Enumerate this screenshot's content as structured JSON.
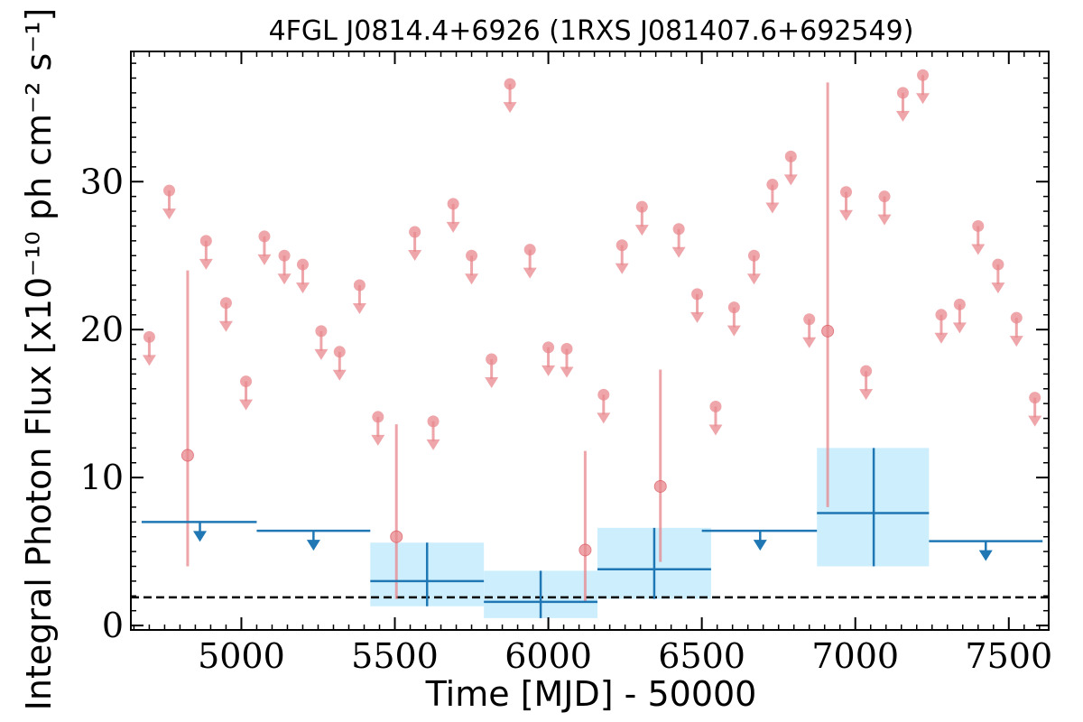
{
  "chart_data": {
    "type": "scatter",
    "title": "4FGL J0814.4+6926 (1RXS J081407.6+692549)",
    "xlabel": "Time [MJD] - 50000",
    "ylabel": "Integral Photon Flux [x10⁻¹⁰ ph cm⁻² s⁻¹]",
    "xlim": [
      4640,
      7630
    ],
    "ylim": [
      -0.3,
      38.8
    ],
    "xticks": [
      5000,
      5500,
      6000,
      6500,
      7000,
      7500
    ],
    "xtick_labels": [
      "5000",
      "5500",
      "6000",
      "6500",
      "7000",
      "7500"
    ],
    "yticks": [
      0,
      10,
      20,
      30
    ],
    "ytick_labels": [
      "0",
      "10",
      "20",
      "30"
    ],
    "grid": false,
    "legend": null,
    "colors": {
      "short_bins": "#e8888d",
      "long_bins": "#1f77b4",
      "long_bins_band": "#cdeefd",
      "reference_line": "#000000"
    },
    "reference_line": {
      "y": 1.9,
      "style": "dashed"
    },
    "series": [
      {
        "role": "short-bin upper limits",
        "points": [
          {
            "x": 4700,
            "y": 19.5
          },
          {
            "x": 4765,
            "y": 29.4
          },
          {
            "x": 4885,
            "y": 26.0
          },
          {
            "x": 4950,
            "y": 21.8
          },
          {
            "x": 5015,
            "y": 16.5
          },
          {
            "x": 5075,
            "y": 26.3
          },
          {
            "x": 5140,
            "y": 25.0
          },
          {
            "x": 5200,
            "y": 24.4
          },
          {
            "x": 5260,
            "y": 19.9
          },
          {
            "x": 5320,
            "y": 18.5
          },
          {
            "x": 5385,
            "y": 23.0
          },
          {
            "x": 5445,
            "y": 14.1
          },
          {
            "x": 5565,
            "y": 26.6
          },
          {
            "x": 5625,
            "y": 13.8
          },
          {
            "x": 5690,
            "y": 28.5
          },
          {
            "x": 5750,
            "y": 25.0
          },
          {
            "x": 5815,
            "y": 18.0
          },
          {
            "x": 5875,
            "y": 36.6
          },
          {
            "x": 5940,
            "y": 25.4
          },
          {
            "x": 6000,
            "y": 18.8
          },
          {
            "x": 6060,
            "y": 18.7
          },
          {
            "x": 6180,
            "y": 15.6
          },
          {
            "x": 6240,
            "y": 25.7
          },
          {
            "x": 6305,
            "y": 28.3
          },
          {
            "x": 6425,
            "y": 26.8
          },
          {
            "x": 6485,
            "y": 22.4
          },
          {
            "x": 6545,
            "y": 14.8
          },
          {
            "x": 6605,
            "y": 21.5
          },
          {
            "x": 6670,
            "y": 25.0
          },
          {
            "x": 6730,
            "y": 29.8
          },
          {
            "x": 6790,
            "y": 31.7
          },
          {
            "x": 6850,
            "y": 20.7
          },
          {
            "x": 6970,
            "y": 29.3
          },
          {
            "x": 7035,
            "y": 17.2
          },
          {
            "x": 7095,
            "y": 29.0
          },
          {
            "x": 7155,
            "y": 36.0
          },
          {
            "x": 7220,
            "y": 37.2
          },
          {
            "x": 7280,
            "y": 21.0
          },
          {
            "x": 7340,
            "y": 21.7
          },
          {
            "x": 7400,
            "y": 27.0
          },
          {
            "x": 7465,
            "y": 24.4
          },
          {
            "x": 7525,
            "y": 20.8
          },
          {
            "x": 7585,
            "y": 15.4
          }
        ]
      },
      {
        "role": "short-bin detections",
        "points": [
          {
            "x": 4825,
            "y": 11.5,
            "ylo": 4.0,
            "yhi": 24.0
          },
          {
            "x": 5505,
            "y": 6.0,
            "ylo": 1.8,
            "yhi": 13.6
          },
          {
            "x": 6120,
            "y": 5.1,
            "ylo": 1.6,
            "yhi": 11.8
          },
          {
            "x": 6365,
            "y": 9.4,
            "ylo": 4.3,
            "yhi": 17.3
          },
          {
            "x": 6910,
            "y": 19.9,
            "ylo": 8.0,
            "yhi": 36.7
          }
        ]
      },
      {
        "role": "long-bin upper limits",
        "bins": [
          {
            "x0": 4675,
            "x1": 5050,
            "y": 7.0,
            "xa": 4865
          },
          {
            "x0": 5050,
            "x1": 5420,
            "y": 6.4,
            "xa": 5235
          },
          {
            "x0": 6500,
            "x1": 6875,
            "y": 6.4,
            "xa": 6690
          },
          {
            "x0": 7240,
            "x1": 7610,
            "y": 5.7,
            "xa": 7425
          }
        ]
      },
      {
        "role": "long-bin detections",
        "bins": [
          {
            "x0": 5420,
            "x1": 5790,
            "xc": 5605,
            "y": 3.0,
            "ylo": 1.3,
            "yhi": 5.6
          },
          {
            "x0": 5790,
            "x1": 6160,
            "xc": 5975,
            "y": 1.6,
            "ylo": 0.5,
            "yhi": 3.7
          },
          {
            "x0": 6160,
            "x1": 6530,
            "xc": 6345,
            "y": 3.8,
            "ylo": 1.8,
            "yhi": 6.6
          },
          {
            "x0": 6875,
            "x1": 7240,
            "xc": 7060,
            "y": 7.6,
            "ylo": 4.0,
            "yhi": 12.0
          }
        ]
      }
    ]
  }
}
